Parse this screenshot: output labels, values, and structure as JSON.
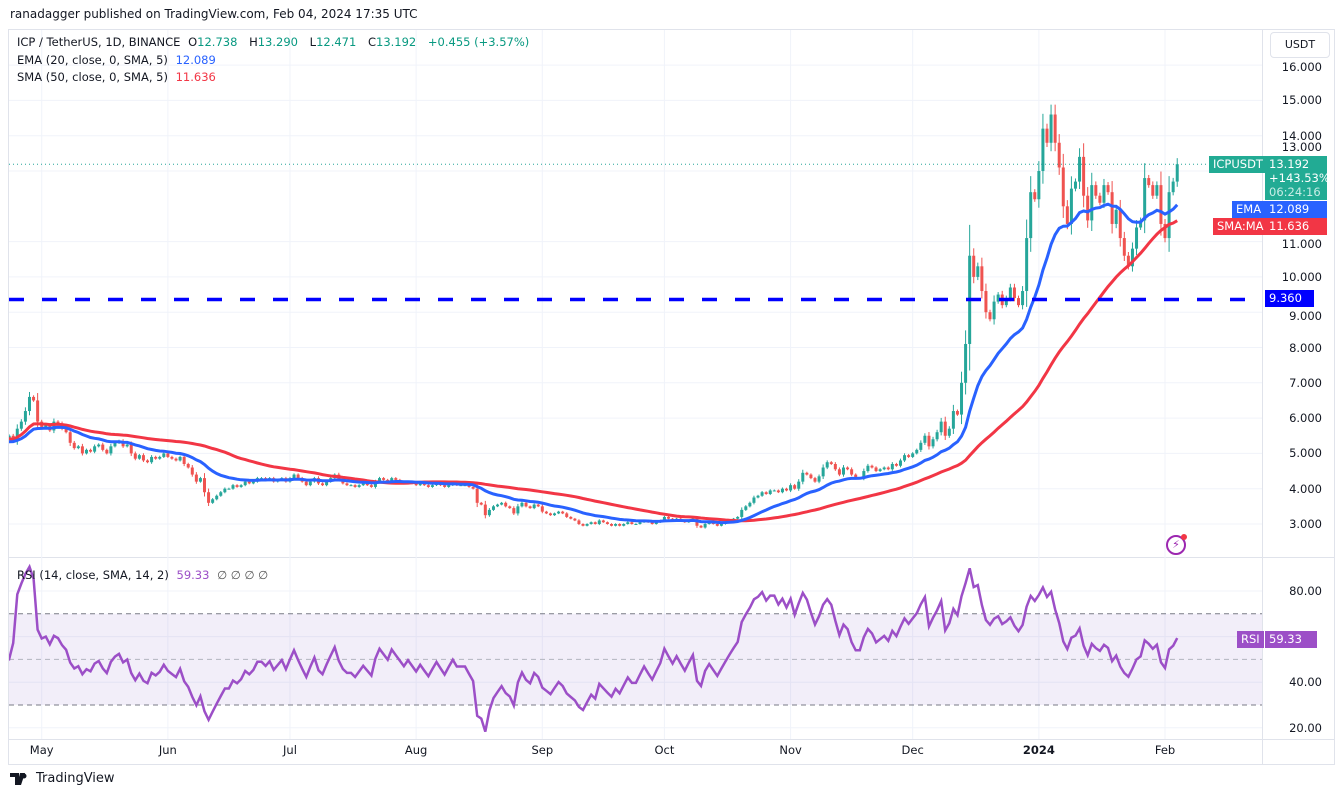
{
  "header": {
    "published": "ranadagger published on TradingView.com, Feb 04, 2024 17:35 UTC"
  },
  "legend": {
    "symbol": "ICP / TetherUS, 1D, BINANCE",
    "open_label": "O",
    "open": "12.738",
    "high_label": "H",
    "high": "13.290",
    "low_label": "L",
    "low": "12.471",
    "close_label": "C",
    "close": "13.192",
    "change": "+0.455 (+3.57%)",
    "ema_label": "EMA (20, close, 0, SMA, 5)",
    "ema_value": "12.089",
    "sma_label": "SMA (50, close, 0, SMA, 5)",
    "sma_value": "11.636",
    "rsi_label": "RSI (14, close, SMA, 14, 2)",
    "rsi_value": "59.33",
    "rsi_extra": "∅ ∅ ∅ ∅"
  },
  "currency_button": "USDT",
  "tags": {
    "symbol": "ICPUSDT",
    "price": "13.192",
    "pct": "+143.53%",
    "countdown": "06:24:16",
    "ema": "EMA",
    "ema_value": "12.089",
    "sma": "SMA:MA",
    "sma_value": "11.636",
    "level": "9.360",
    "rsi": "RSI",
    "rsi_value": "59.33"
  },
  "colors": {
    "up": "#26a69a",
    "down": "#ef5350",
    "ema": "#2962ff",
    "sma": "#f23645",
    "level": "#0000ff",
    "rsi": "#9c4fc7",
    "tag_green": "#22ab94"
  },
  "brand": "TradingView",
  "icons": {
    "alert": "lightning-bolt-icon",
    "logo": "tradingview-logo-icon"
  },
  "chart_data": [
    {
      "type": "candlestick",
      "title": "ICP / TetherUS, 1D, BINANCE",
      "ylim": [
        2.3,
        16.7
      ],
      "y_ticks": [
        "16.000",
        "15.000",
        "14.000",
        "13.000",
        "11.000",
        "10.000",
        "9.000",
        "8.000",
        "7.000",
        "6.000",
        "5.000",
        "4.000",
        "3.000"
      ],
      "x_ticks": [
        "May",
        "Jun",
        "Jul",
        "Aug",
        "Sep",
        "Oct",
        "Nov",
        "Dec",
        "2024",
        "Feb"
      ],
      "horizontal_level": 9.36,
      "series": [
        {
          "name": "EMA (20, close, 0, SMA, 5)"
        },
        {
          "name": "SMA (50, close, 0, SMA, 5)"
        }
      ],
      "closes": [
        5.3,
        5.45,
        5.5,
        5.35,
        5.7,
        5.9,
        6.2,
        6.6,
        6.5,
        5.9,
        5.75,
        5.8,
        5.65,
        5.9,
        5.85,
        5.7,
        5.6,
        5.3,
        5.15,
        5.2,
        5.0,
        5.1,
        5.05,
        5.2,
        5.25,
        5.1,
        5.0,
        5.2,
        5.3,
        5.35,
        5.2,
        5.25,
        5.0,
        4.85,
        4.95,
        4.8,
        4.75,
        4.9,
        4.85,
        4.9,
        5.0,
        4.9,
        4.85,
        4.8,
        4.9,
        4.7,
        4.6,
        4.4,
        4.2,
        4.3,
        3.9,
        3.6,
        3.7,
        3.8,
        3.9,
        4.0,
        4.0,
        4.1,
        4.05,
        4.1,
        4.2,
        4.15,
        4.2,
        4.3,
        4.3,
        4.25,
        4.3,
        4.2,
        4.25,
        4.3,
        4.2,
        4.3,
        4.4,
        4.3,
        4.2,
        4.1,
        4.2,
        4.3,
        4.15,
        4.1,
        4.2,
        4.3,
        4.4,
        4.25,
        4.15,
        4.1,
        4.1,
        4.05,
        4.1,
        4.15,
        4.1,
        4.05,
        4.2,
        4.3,
        4.25,
        4.2,
        4.3,
        4.25,
        4.2,
        4.15,
        4.2,
        4.15,
        4.1,
        4.15,
        4.1,
        4.05,
        4.1,
        4.15,
        4.1,
        4.05,
        4.1,
        4.15,
        4.1,
        4.1,
        4.1,
        4.05,
        4.0,
        3.6,
        3.55,
        3.25,
        3.4,
        3.5,
        3.55,
        3.6,
        3.5,
        3.45,
        3.3,
        3.5,
        3.6,
        3.5,
        3.45,
        3.55,
        3.5,
        3.35,
        3.3,
        3.25,
        3.3,
        3.35,
        3.3,
        3.2,
        3.15,
        3.1,
        3.0,
        2.95,
        3.0,
        3.05,
        3.0,
        3.1,
        3.05,
        3.0,
        2.95,
        3.0,
        2.95,
        3.0,
        3.05,
        3.0,
        3.0,
        3.05,
        3.1,
        3.05,
        3.0,
        3.05,
        3.1,
        3.2,
        3.15,
        3.1,
        3.15,
        3.1,
        3.05,
        3.1,
        3.15,
        2.95,
        2.9,
        3.0,
        3.05,
        3.0,
        2.95,
        3.0,
        3.05,
        3.1,
        3.15,
        3.2,
        3.4,
        3.5,
        3.6,
        3.75,
        3.8,
        3.9,
        3.85,
        3.95,
        3.95,
        3.9,
        4.0,
        3.95,
        4.1,
        4.0,
        4.2,
        4.45,
        4.4,
        4.3,
        4.2,
        4.35,
        4.6,
        4.75,
        4.7,
        4.55,
        4.4,
        4.6,
        4.55,
        4.4,
        4.3,
        4.3,
        4.5,
        4.65,
        4.6,
        4.5,
        4.55,
        4.6,
        4.55,
        4.7,
        4.65,
        4.8,
        4.95,
        4.9,
        5.0,
        5.1,
        5.3,
        5.5,
        5.2,
        5.4,
        5.6,
        5.9,
        5.5,
        5.7,
        6.2,
        6.1,
        7.0,
        8.1,
        10.6,
        10.0,
        10.3,
        9.6,
        9.0,
        8.8,
        9.3,
        9.5,
        9.2,
        9.4,
        9.7,
        9.4,
        9.2,
        9.6,
        11.1,
        12.4,
        12.2,
        13.0,
        14.2,
        13.8,
        14.6,
        13.8,
        13.1,
        12.0,
        11.5,
        12.5,
        12.7,
        13.4,
        12.3,
        11.6,
        12.6,
        12.3,
        12.1,
        12.6,
        12.4,
        11.5,
        11.9,
        11.1,
        10.6,
        10.3,
        10.8,
        11.4,
        11.6,
        12.8,
        12.6,
        12.3,
        12.6,
        11.5,
        11.1,
        12.4,
        12.7,
        13.192
      ]
    },
    {
      "type": "line",
      "title": "RSI (14, close, SMA, 14, 2)",
      "ylim": [
        16,
        96
      ],
      "y_ticks": [
        "80.00",
        "40.00",
        "20.00"
      ],
      "bands": [
        30,
        50,
        70
      ],
      "last_value": 59.33
    }
  ]
}
